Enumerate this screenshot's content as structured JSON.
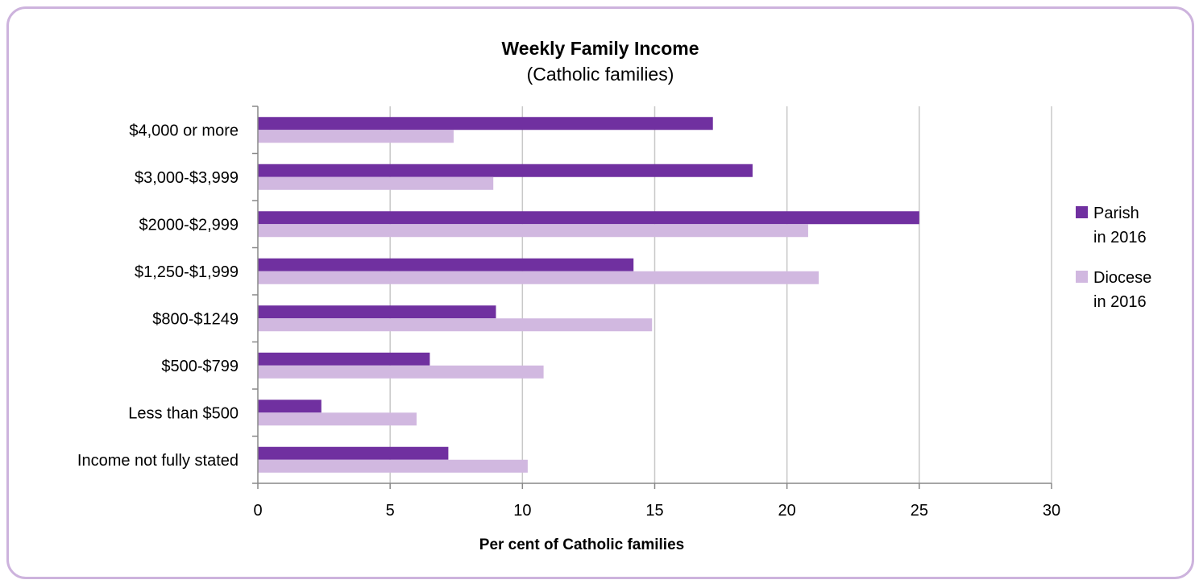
{
  "chart_data": {
    "type": "bar",
    "orientation": "horizontal",
    "title": "Weekly Family Income",
    "subtitle": "(Catholic families)",
    "xlabel": "Per cent of Catholic families",
    "ylabel": "",
    "xlim": [
      0,
      30
    ],
    "xticks": [
      "0",
      "5",
      "10",
      "15",
      "20",
      "25",
      "30"
    ],
    "grid": "vertical",
    "legend_position": "right",
    "categories": [
      "$4,000 or more",
      "$3,000-$3,999",
      "$2000-$2,999",
      "$1,250-$1,999",
      "$800-$1249",
      "$500-$799",
      "Less than $500",
      "Income not fully stated"
    ],
    "series": [
      {
        "name": "Parish in 2016",
        "legend_lines": [
          "Parish",
          "in 2016"
        ],
        "color": "#7030a0",
        "values": [
          17.2,
          18.7,
          25.0,
          14.2,
          9.0,
          6.5,
          2.4,
          7.2
        ]
      },
      {
        "name": "Diocese in 2016",
        "legend_lines": [
          "Diocese",
          "in 2016"
        ],
        "color": "#d1b8e0",
        "values": [
          7.4,
          8.9,
          20.8,
          21.2,
          14.9,
          10.8,
          6.0,
          10.2
        ]
      }
    ]
  }
}
